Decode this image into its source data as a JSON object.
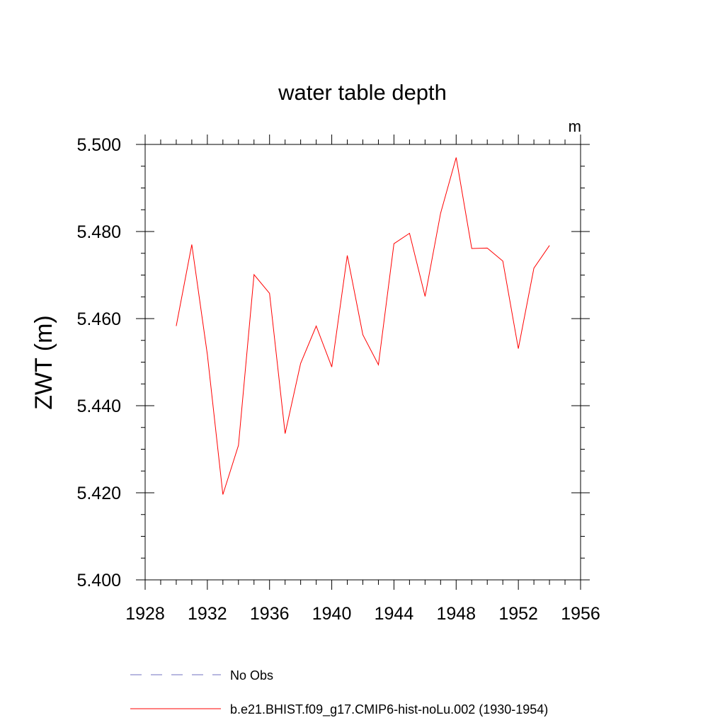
{
  "chart_data": {
    "type": "line",
    "title": "water table depth",
    "units_label": "m",
    "xlabel": "",
    "ylabel": "ZWT  (m)",
    "xlim": [
      1928,
      1956
    ],
    "ylim": [
      5.4,
      5.5
    ],
    "x_ticks": [
      1928,
      1932,
      1936,
      1940,
      1944,
      1948,
      1952,
      1956
    ],
    "y_ticks": [
      5.4,
      5.42,
      5.44,
      5.46,
      5.48,
      5.5
    ],
    "x_tick_labels": [
      "1928",
      "1932",
      "1936",
      "1940",
      "1944",
      "1948",
      "1952",
      "1956"
    ],
    "y_tick_labels": [
      "5.400",
      "5.420",
      "5.440",
      "5.460",
      "5.480",
      "5.500"
    ],
    "grid": false,
    "legend_position": "bottom",
    "series": [
      {
        "name": "b.e21.BHIST.f09_g17.CMIP6-hist-noLu.002 (1930-1954)",
        "color": "#ff0000",
        "style": "solid",
        "x": [
          1930,
          1931,
          1932,
          1933,
          1934,
          1935,
          1936,
          1937,
          1938,
          1939,
          1940,
          1941,
          1942,
          1943,
          1944,
          1945,
          1946,
          1947,
          1948,
          1949,
          1950,
          1951,
          1952,
          1953,
          1954
        ],
        "values": [
          5.4583,
          5.477,
          5.4517,
          5.4196,
          5.4309,
          5.4701,
          5.4658,
          5.4336,
          5.4497,
          5.4583,
          5.4489,
          5.4745,
          5.4563,
          5.4494,
          5.4772,
          5.4796,
          5.4651,
          5.4842,
          5.497,
          5.4761,
          5.4762,
          5.4732,
          5.4531,
          5.4716,
          5.4768
        ]
      }
    ],
    "legend": [
      {
        "label": "No Obs",
        "color": "#7070c0",
        "style": "dashed"
      },
      {
        "label": "b.e21.BHIST.f09_g17.CMIP6-hist-noLu.002 (1930-1954)",
        "color": "#ff0000",
        "style": "solid"
      }
    ]
  }
}
